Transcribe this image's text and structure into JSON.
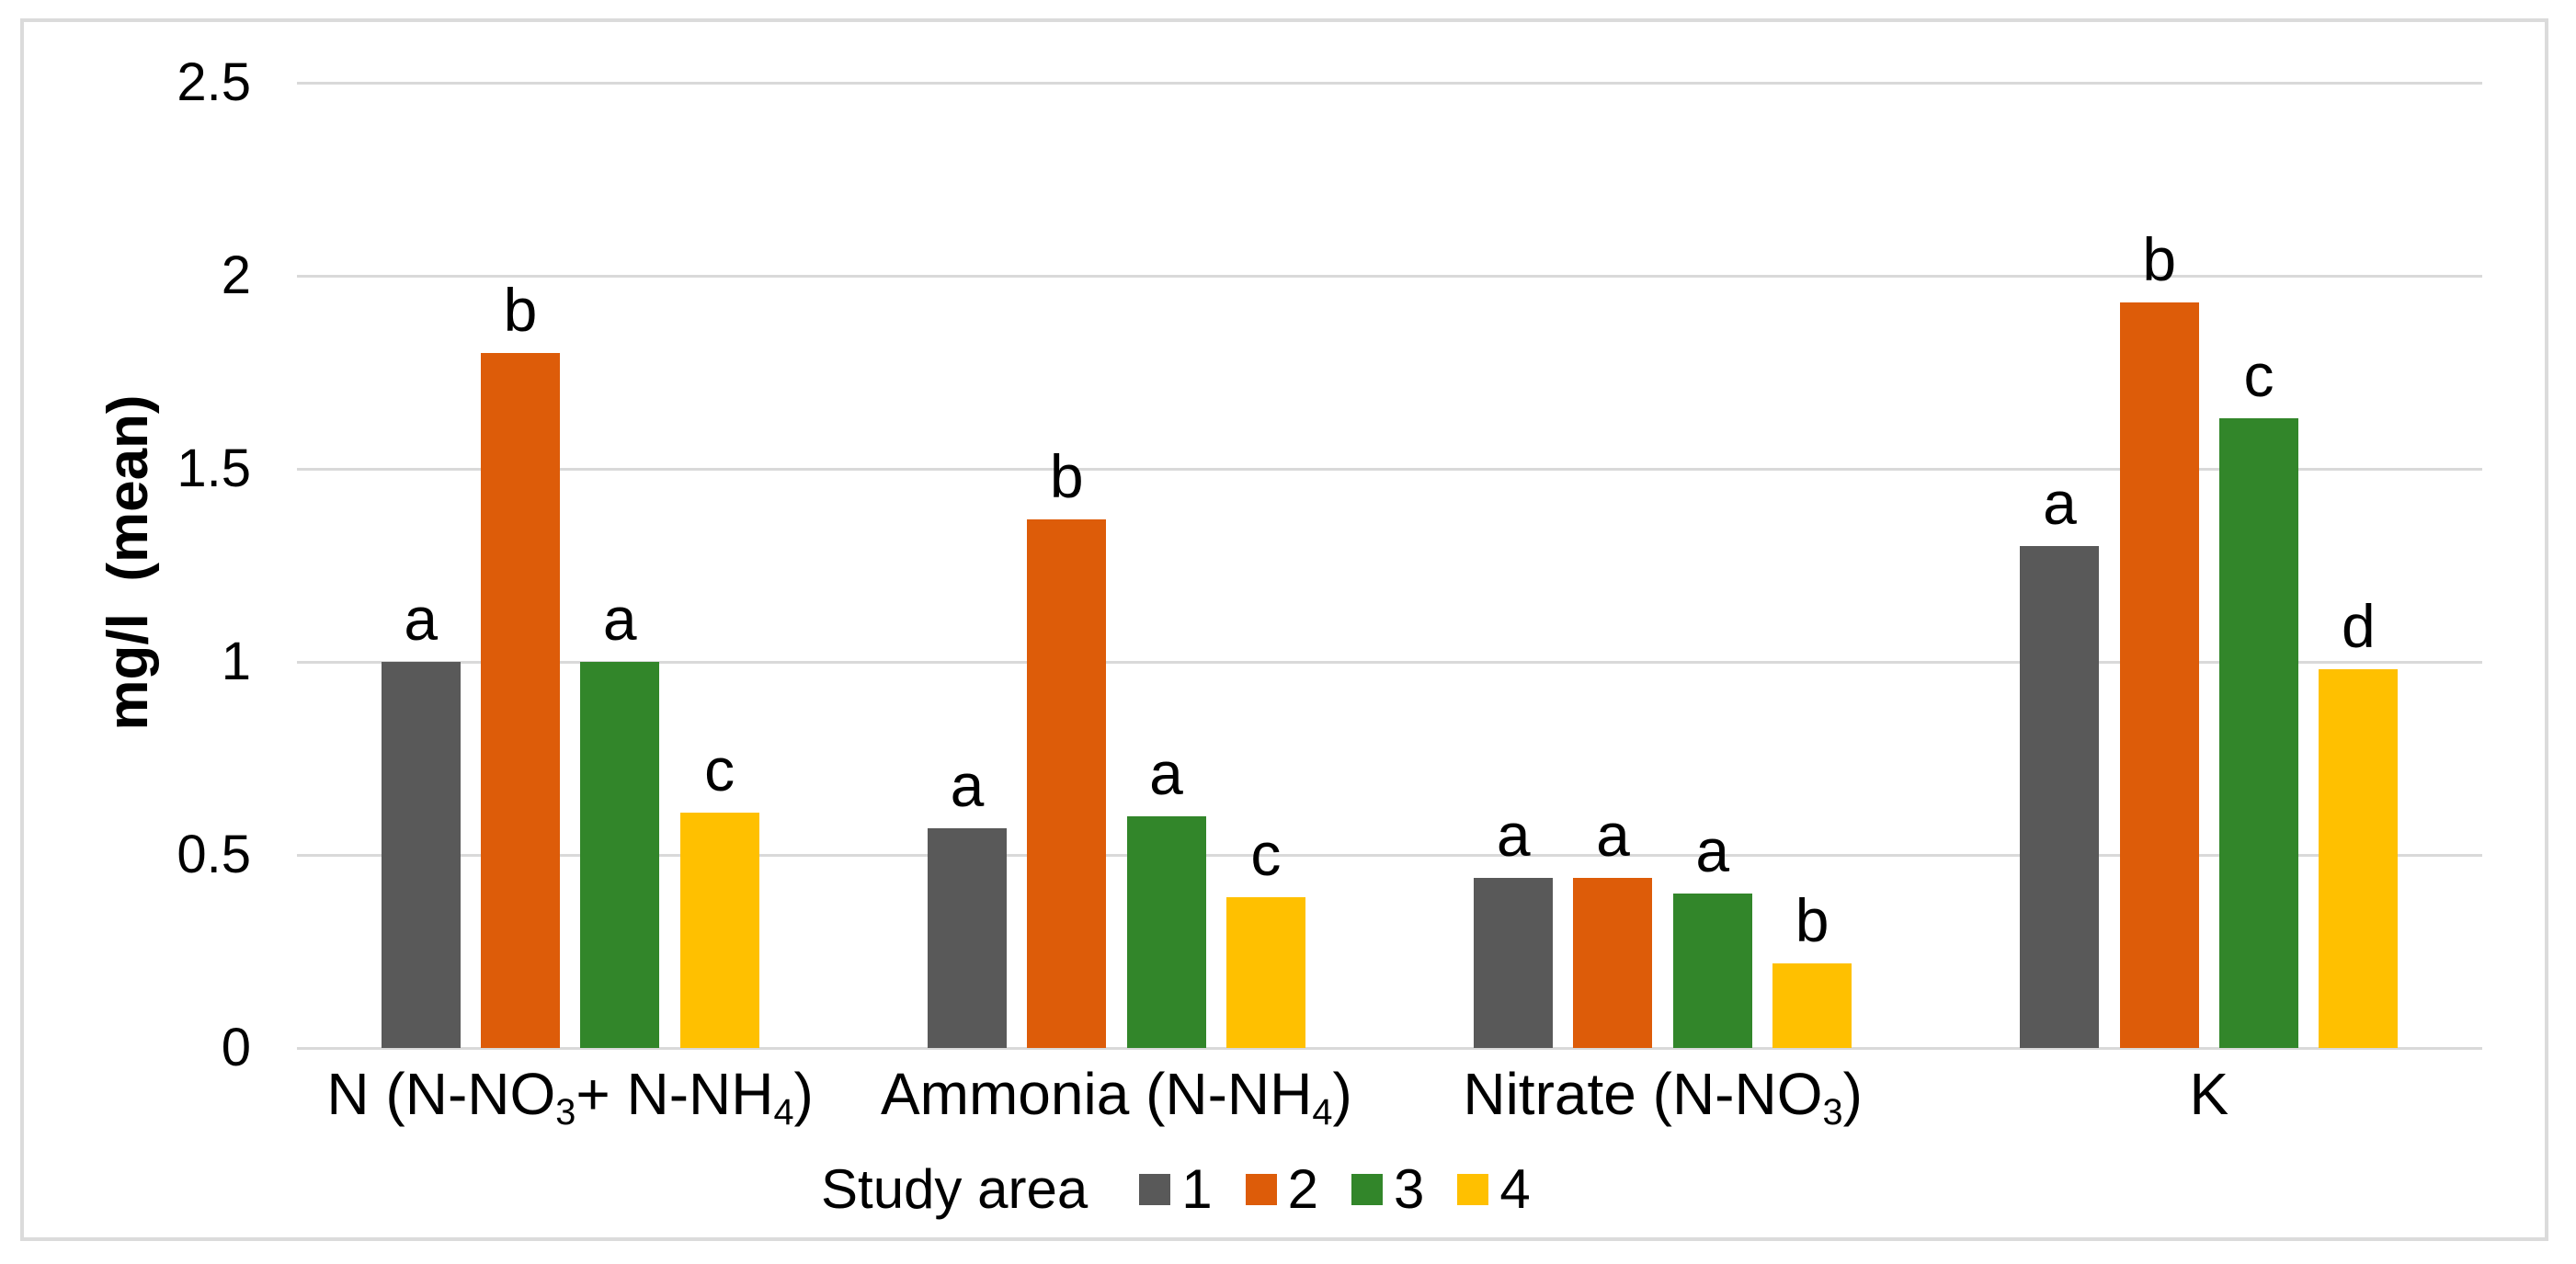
{
  "figure": {
    "background": "#FFFFFF",
    "border_color": "#DBDBDB"
  },
  "chart_data": {
    "type": "bar",
    "title": "",
    "xlabel": "",
    "ylabel": "mg/l  (mean)",
    "ylim": [
      0,
      2.5
    ],
    "ytick_labels": [
      "0",
      "0.5",
      "1",
      "1.5",
      "2",
      "2.5"
    ],
    "ytick_values": [
      0,
      0.5,
      1,
      1.5,
      2,
      2.5
    ],
    "grid": true,
    "gridline_color": "#D9D9D9",
    "categories": [
      "N (N-NO_3_+ N-NH_4_)",
      "Ammonia (N-NH_4_)",
      "Nitrate (N-NO_3_)",
      "K"
    ],
    "legend_title": "Study area",
    "legend_position": "bottom-center",
    "series": [
      {
        "name": "1",
        "color": "#595959",
        "values": [
          1.0,
          0.57,
          0.44,
          1.3
        ],
        "sig_letters": [
          "a",
          "a",
          "a",
          "a"
        ]
      },
      {
        "name": "2",
        "color": "#DD5C09",
        "values": [
          1.8,
          1.37,
          0.44,
          1.93
        ],
        "sig_letters": [
          "b",
          "b",
          "a",
          "b"
        ]
      },
      {
        "name": "3",
        "color": "#32862A",
        "values": [
          1.0,
          0.6,
          0.4,
          1.63
        ],
        "sig_letters": [
          "a",
          "a",
          "a",
          "c"
        ]
      },
      {
        "name": "4",
        "color": "#FFC000",
        "values": [
          0.61,
          0.39,
          0.22,
          0.98
        ],
        "sig_letters": [
          "c",
          "c",
          "b",
          "d"
        ]
      }
    ]
  }
}
